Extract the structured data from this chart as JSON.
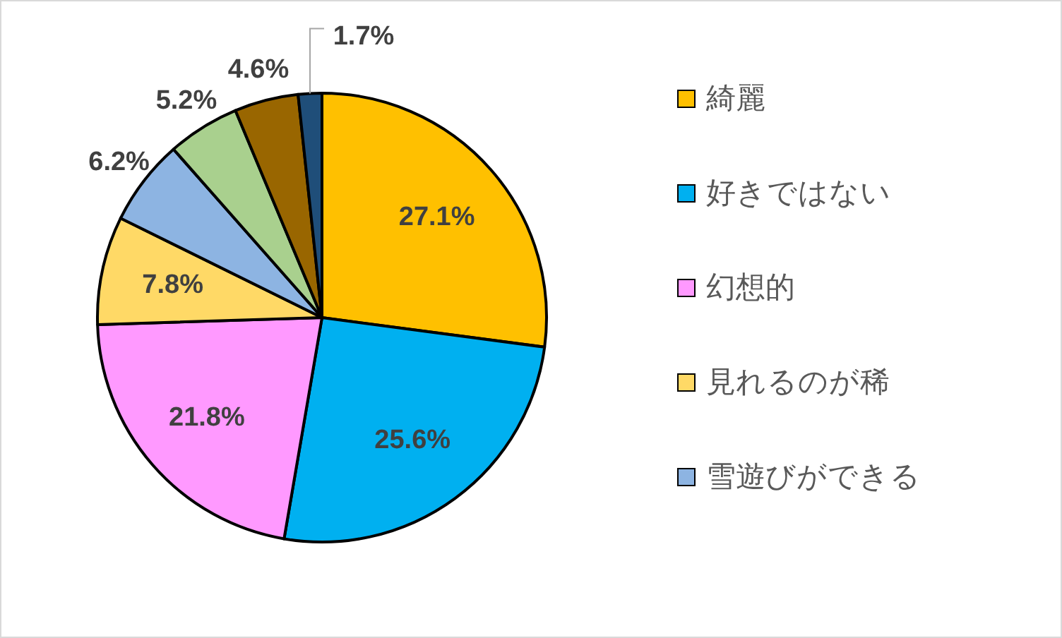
{
  "chart_data": {
    "type": "pie",
    "categories": [
      "綺麗",
      "好きではない",
      "幻想的",
      "見れるのが稀",
      "雪遊びができる",
      null,
      null,
      null
    ],
    "values": [
      27.1,
      25.6,
      21.8,
      7.8,
      6.2,
      5.2,
      4.6,
      1.7
    ],
    "colors": [
      "#ffc000",
      "#00b0f0",
      "#ff99ff",
      "#ffd966",
      "#8db4e2",
      "#a9d08e",
      "#996600",
      "#1f4e79"
    ],
    "value_labels": [
      "27.1%",
      "25.6%",
      "21.8%",
      "7.8%",
      "6.2%",
      "5.2%",
      "4.6%",
      "1.7%"
    ],
    "legend": "right"
  }
}
